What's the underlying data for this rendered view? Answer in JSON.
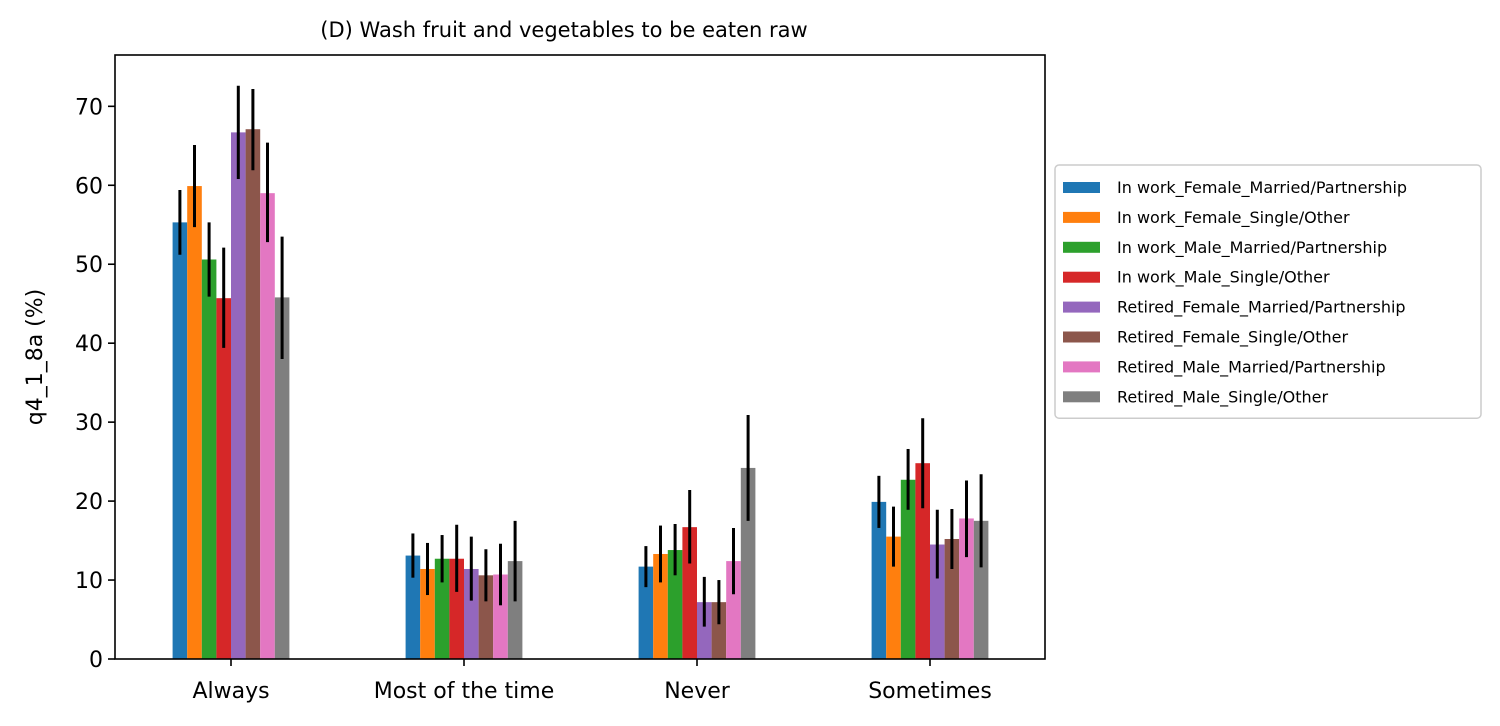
{
  "chart_data": {
    "type": "bar",
    "title": "(D) Wash fruit and vegetables to be eaten raw",
    "xlabel": "",
    "ylabel": "q4_1_8a (%)",
    "ylim": [
      0,
      76.5
    ],
    "yticks": [
      0,
      10,
      20,
      30,
      40,
      50,
      60,
      70
    ],
    "categories": [
      "Always",
      "Most of the time",
      "Never",
      "Sometimes"
    ],
    "legend_position": "right",
    "error_bars": true,
    "series": [
      {
        "name": "In work_Female_Married/Partnership",
        "color": "#1f77b4",
        "values": [
          55.3,
          13.1,
          11.7,
          19.9
        ],
        "errors": [
          [
            51.2,
            59.4
          ],
          [
            10.3,
            15.9
          ],
          [
            9.1,
            14.3
          ],
          [
            16.6,
            23.2
          ]
        ]
      },
      {
        "name": "In work_Female_Single/Other",
        "color": "#ff7f0e",
        "values": [
          59.9,
          11.4,
          13.3,
          15.5
        ],
        "errors": [
          [
            54.7,
            65.1
          ],
          [
            8.1,
            14.7
          ],
          [
            9.7,
            16.9
          ],
          [
            11.7,
            19.3
          ]
        ]
      },
      {
        "name": "In work_Male_Married/Partnership",
        "color": "#2ca02c",
        "values": [
          50.6,
          12.7,
          13.8,
          22.7
        ],
        "errors": [
          [
            45.9,
            55.3
          ],
          [
            9.7,
            15.7
          ],
          [
            10.6,
            17.1
          ],
          [
            18.9,
            26.6
          ]
        ]
      },
      {
        "name": "In work_Male_Single/Other",
        "color": "#d62728",
        "values": [
          45.7,
          12.7,
          16.7,
          24.8
        ],
        "errors": [
          [
            39.4,
            52.1
          ],
          [
            8.5,
            17.0
          ],
          [
            12.1,
            21.4
          ],
          [
            19.1,
            30.5
          ]
        ]
      },
      {
        "name": "Retired_Female_Married/Partnership",
        "color": "#9467bd",
        "values": [
          66.7,
          11.4,
          7.2,
          14.5
        ],
        "errors": [
          [
            60.8,
            72.6
          ],
          [
            7.4,
            15.5
          ],
          [
            4.1,
            10.4
          ],
          [
            10.2,
            18.9
          ]
        ]
      },
      {
        "name": "Retired_Female_Single/Other",
        "color": "#8c564b",
        "values": [
          67.1,
          10.6,
          7.2,
          15.2
        ],
        "errors": [
          [
            61.9,
            72.2
          ],
          [
            7.3,
            13.9
          ],
          [
            4.4,
            10.0
          ],
          [
            11.4,
            19.0
          ]
        ]
      },
      {
        "name": "Retired_Male_Married/Partnership",
        "color": "#e377c2",
        "values": [
          59.0,
          10.7,
          12.4,
          17.8
        ],
        "errors": [
          [
            52.8,
            65.4
          ],
          [
            6.8,
            14.6
          ],
          [
            8.2,
            16.6
          ],
          [
            12.9,
            22.6
          ]
        ]
      },
      {
        "name": "Retired_Male_Single/Other",
        "color": "#7f7f7f",
        "values": [
          45.8,
          12.4,
          24.2,
          17.5
        ],
        "errors": [
          [
            38.0,
            53.5
          ],
          [
            7.3,
            17.5
          ],
          [
            17.5,
            30.9
          ],
          [
            11.6,
            23.4
          ]
        ]
      }
    ]
  }
}
